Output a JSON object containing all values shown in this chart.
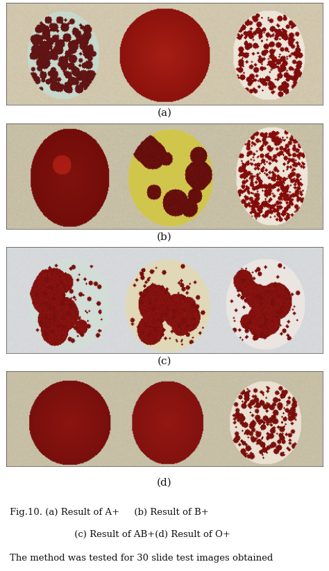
{
  "bg_color": "#ffffff",
  "subfig_labels": [
    "(a)",
    "(b)",
    "(c)",
    "(d)"
  ],
  "caption_line1": "Fig.10. (a) Result of A+     (b) Result of B+",
  "caption_line2": "         (c) Result of AB+(d) Result of O+",
  "caption_line3": "The method was tested for 30 slide test images obtained",
  "caption_fontsize": 9.5,
  "label_fontsize": 11,
  "panel_bg_a": [
    180,
    170,
    148
  ],
  "panel_bg_b": [
    185,
    178,
    152
  ],
  "panel_bg_c": [
    195,
    198,
    200
  ],
  "panel_bg_d": [
    188,
    178,
    152
  ]
}
